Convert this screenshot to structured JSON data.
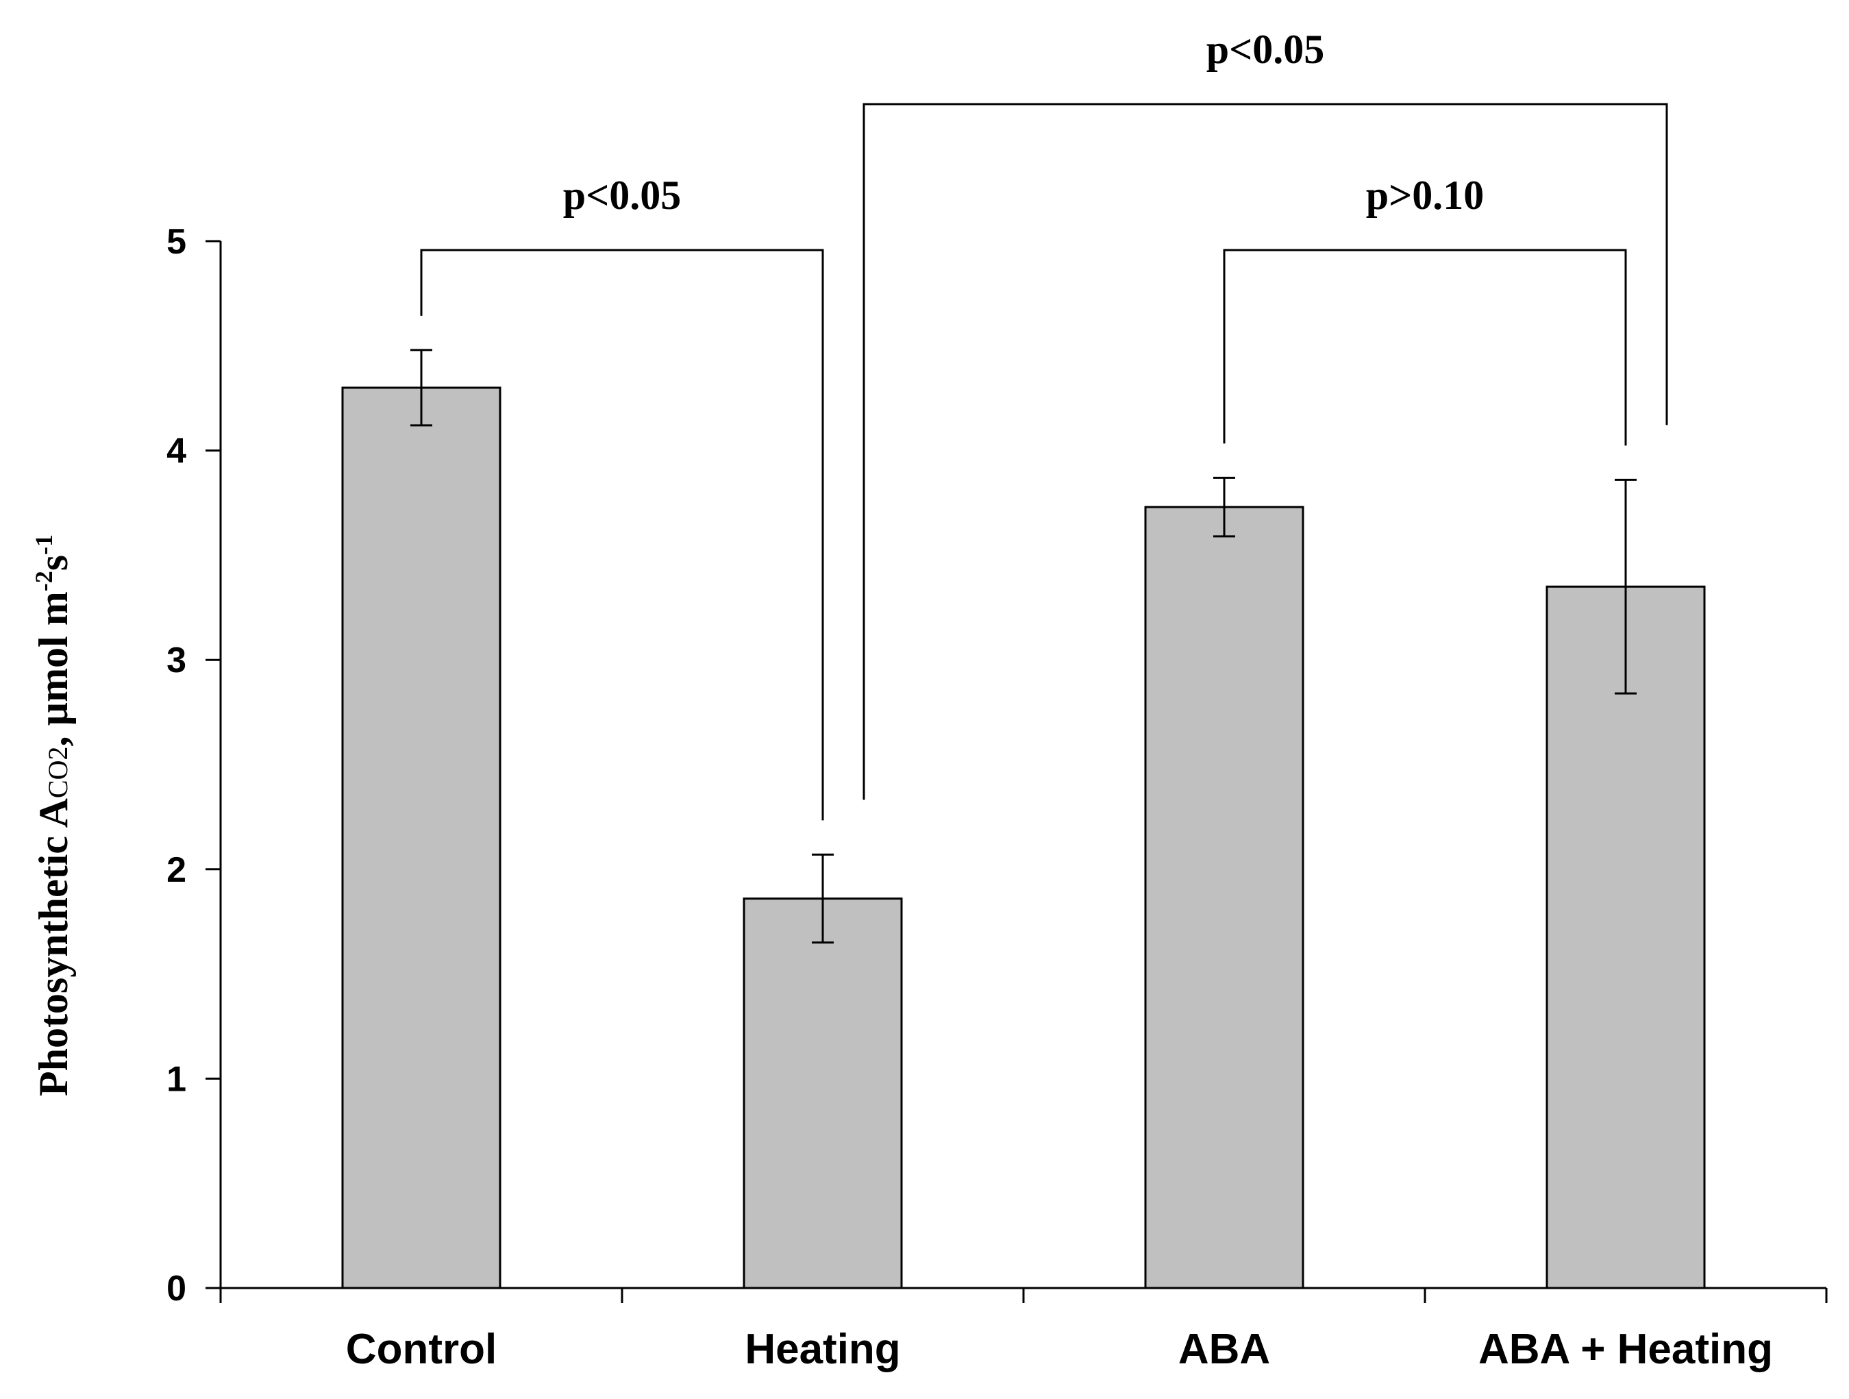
{
  "chart_data": {
    "type": "bar",
    "title": "",
    "xlabel": "",
    "ylabel": {
      "prefix": "Photosynthetic A",
      "subscript": "CO2",
      "middle": ", µmol m",
      "sup1": "-2",
      "mid2": "s",
      "sup2": "-1"
    },
    "ylim": [
      0,
      5
    ],
    "yticks": [
      "0",
      "1",
      "2",
      "3",
      "4",
      "5"
    ],
    "categories": [
      "Control",
      "Heating",
      "ABA",
      "ABA + Heating"
    ],
    "values": [
      4.3,
      1.86,
      3.73,
      3.35
    ],
    "errors": [
      0.18,
      0.21,
      0.14,
      0.51
    ],
    "bar_color": "#c0c0c0",
    "significance": [
      {
        "from": 0,
        "to": 1,
        "label": "p<0.05"
      },
      {
        "from": 2,
        "to": 3,
        "label": "p>0.10"
      },
      {
        "from": 1,
        "to": 3,
        "label": "p<0.05"
      }
    ]
  }
}
